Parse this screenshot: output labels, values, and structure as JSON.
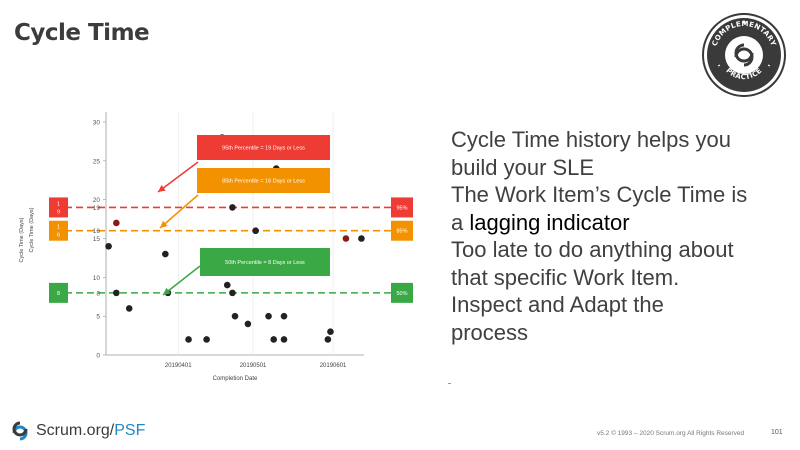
{
  "slide": {
    "title": "Cycle Time",
    "badge": {
      "top": "COMPLEMENTARY",
      "bottom": "PRACTICE"
    },
    "right_text": {
      "line1": "Cycle Time history helps you",
      "line2": "build your SLE",
      "line3": "The Work Item’s Cycle Time is",
      "line4_prefix": "a ",
      "line4_emph": "lagging indicator",
      "line5": "Too late to do anything about",
      "line6": "that specific Work Item.",
      "line7": "Inspect and Adapt the",
      "line8": "process"
    },
    "logo": {
      "main": "Scrum.org",
      "sep": "/",
      "psf": "PSF"
    },
    "footer": "v5.2 © 1993 – 2020 Scrum.org All Rights Reserved",
    "page_number": "101"
  },
  "chart_data": {
    "type": "scatter",
    "xlabel": "Completion Date",
    "ylabel": "Cycle Time (Days)",
    "ylim": [
      0,
      30
    ],
    "yticks": [
      0,
      5,
      10,
      15,
      20,
      25,
      30
    ],
    "xticks": [
      {
        "label": "20190401",
        "x": 0.28
      },
      {
        "label": "20190501",
        "x": 0.57
      },
      {
        "label": "20190601",
        "x": 0.88
      }
    ],
    "points": [
      {
        "x": 0.01,
        "y": 14,
        "color": "#222222"
      },
      {
        "x": 0.04,
        "y": 8,
        "color": "#222222"
      },
      {
        "x": 0.04,
        "y": 17,
        "color": "#8b1a1a"
      },
      {
        "x": 0.09,
        "y": 6,
        "color": "#222222"
      },
      {
        "x": 0.23,
        "y": 13,
        "color": "#222222"
      },
      {
        "x": 0.24,
        "y": 8,
        "color": "#222222"
      },
      {
        "x": 0.32,
        "y": 2,
        "color": "#222222"
      },
      {
        "x": 0.39,
        "y": 2,
        "color": "#222222"
      },
      {
        "x": 0.45,
        "y": 28,
        "color": "#222222"
      },
      {
        "x": 0.47,
        "y": 9,
        "color": "#222222"
      },
      {
        "x": 0.49,
        "y": 19,
        "color": "#222222"
      },
      {
        "x": 0.49,
        "y": 8,
        "color": "#222222"
      },
      {
        "x": 0.5,
        "y": 5,
        "color": "#222222"
      },
      {
        "x": 0.55,
        "y": 4,
        "color": "#222222"
      },
      {
        "x": 0.58,
        "y": 16,
        "color": "#222222"
      },
      {
        "x": 0.63,
        "y": 5,
        "color": "#222222"
      },
      {
        "x": 0.65,
        "y": 2,
        "color": "#222222"
      },
      {
        "x": 0.66,
        "y": 24,
        "color": "#222222"
      },
      {
        "x": 0.69,
        "y": 5,
        "color": "#222222"
      },
      {
        "x": 0.69,
        "y": 2,
        "color": "#222222"
      },
      {
        "x": 0.86,
        "y": 2,
        "color": "#222222"
      },
      {
        "x": 0.87,
        "y": 3,
        "color": "#222222"
      },
      {
        "x": 0.93,
        "y": 15,
        "color": "#8b1a1a"
      },
      {
        "x": 0.99,
        "y": 15,
        "color": "#222222"
      }
    ],
    "percentiles": [
      {
        "pct": "95%",
        "days": "1 9",
        "value": 19,
        "color": "#ee3b33",
        "callout": "95th Percentile = 19 Days or Less"
      },
      {
        "pct": "85%",
        "days": "1 6",
        "value": 16,
        "color": "#f39200",
        "callout": "85th Percentile = 16 Days or Less"
      },
      {
        "pct": "50%",
        "days": "8",
        "value": 8,
        "color": "#3aa845",
        "callout": "50th Percentile = 8 Days or Less"
      }
    ],
    "accent": {
      "red": "#ee3b33",
      "orange": "#f39200",
      "green": "#3aa845"
    }
  }
}
